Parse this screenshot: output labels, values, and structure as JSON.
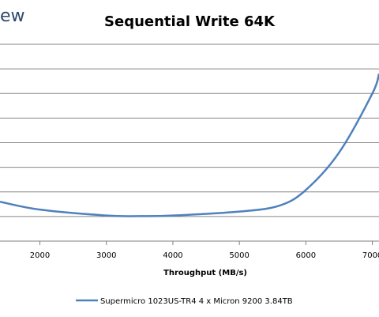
{
  "watermark": "ew",
  "chart_data": {
    "type": "line",
    "title": "Sequential Write 64K",
    "xlabel": "Throughput (MB/s)",
    "ylabel": "",
    "xlim": [
      1400,
      7100
    ],
    "x_ticks": [
      2000,
      3000,
      4000,
      5000,
      6000,
      7000
    ],
    "grid": true,
    "legend_position": "bottom",
    "series": [
      {
        "name": "Supermicro 1023US-TR4 4 x Micron 9200 3.84TB",
        "color": "#4f81bd",
        "x": [
          1400,
          2000,
          3000,
          3500,
          4000,
          5000,
          5600,
          6000,
          6500,
          7000,
          7100
        ],
        "y": [
          0.2,
          0.16,
          0.13,
          0.127,
          0.13,
          0.15,
          0.18,
          0.26,
          0.45,
          0.75,
          0.85
        ]
      }
    ]
  }
}
